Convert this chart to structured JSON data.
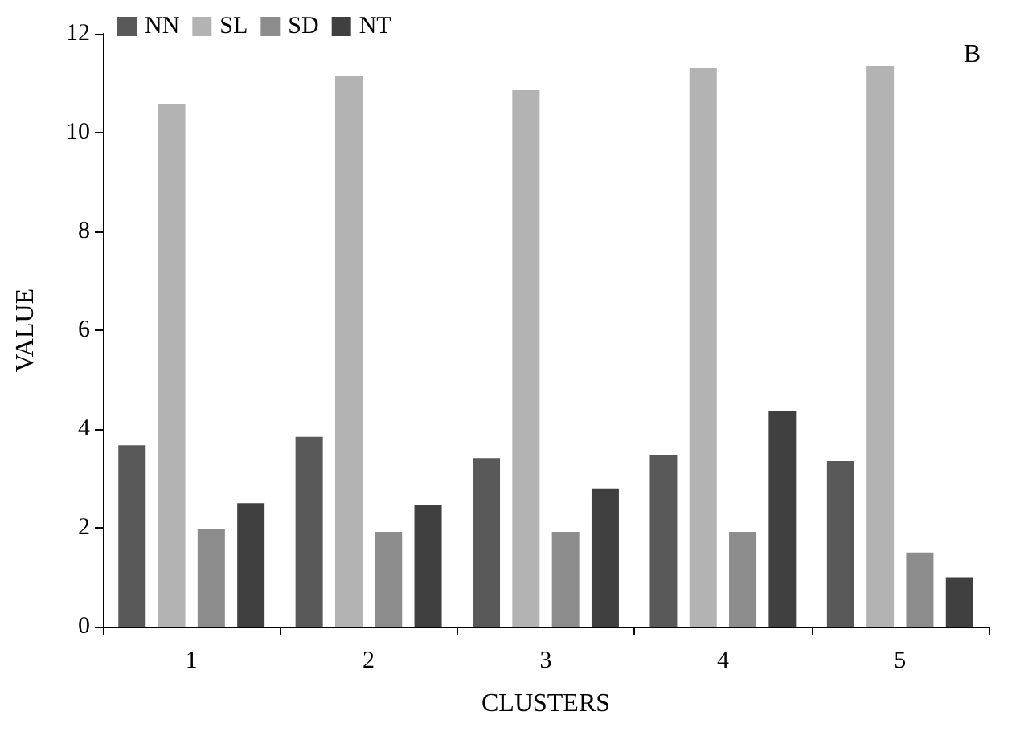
{
  "chart_data": {
    "type": "bar",
    "xlabel": "CLUSTERS",
    "ylabel": "VALUE",
    "annotations": [
      "B"
    ],
    "categories": [
      "1",
      "2",
      "3",
      "4",
      "5"
    ],
    "series": [
      {
        "name": "NN",
        "color": "#595959",
        "values": [
          3.67,
          3.84,
          3.41,
          3.48,
          3.35
        ]
      },
      {
        "name": "SL",
        "color": "#b3b3b3",
        "values": [
          10.57,
          11.15,
          10.86,
          11.3,
          11.35
        ]
      },
      {
        "name": "SD",
        "color": "#8c8c8c",
        "values": [
          1.98,
          1.92,
          1.92,
          1.92,
          1.5
        ]
      },
      {
        "name": "NT",
        "color": "#404040",
        "values": [
          2.5,
          2.47,
          2.8,
          4.36,
          1.0
        ]
      }
    ],
    "ylim": [
      0,
      12
    ],
    "yticks": [
      0,
      2,
      4,
      6,
      8,
      10,
      12
    ],
    "grid": false,
    "legend": "top left"
  }
}
